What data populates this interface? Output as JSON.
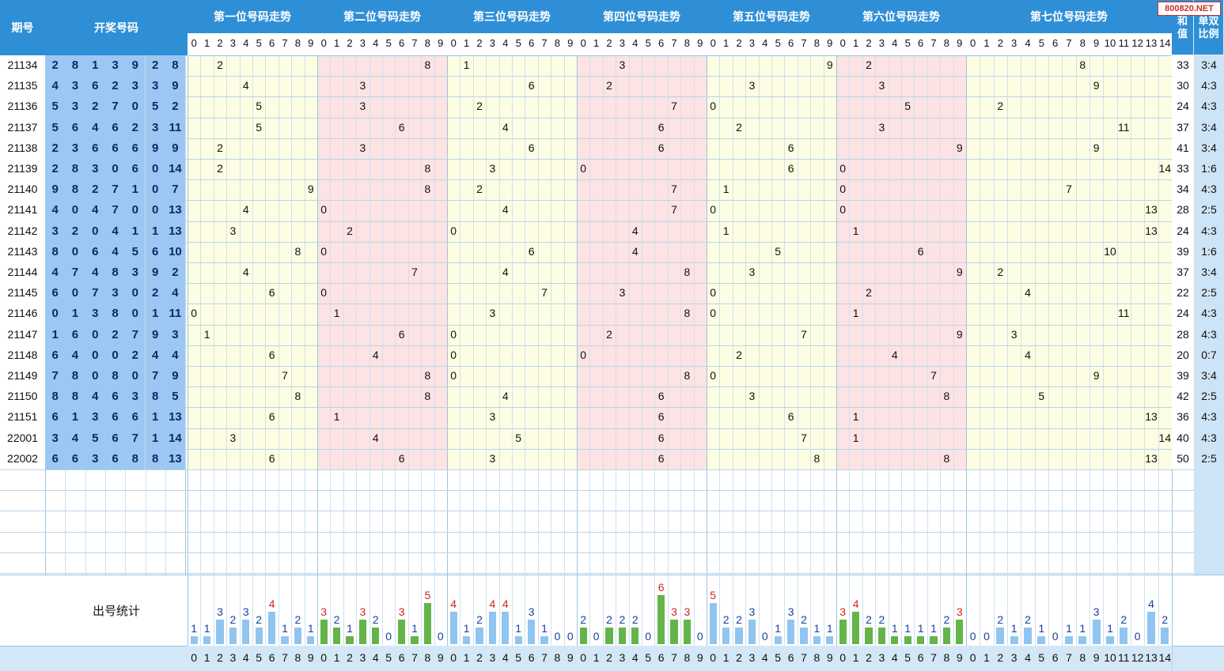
{
  "watermark": "800820.NET",
  "headers": {
    "period": "期号",
    "draw": "开奖号码",
    "positions": [
      "第一位号码走势",
      "第二位号码走势",
      "第三位号码走势",
      "第四位号码走势",
      "第五位号码走势",
      "第六位号码走势",
      "第七位号码走势"
    ],
    "sum": "和值",
    "ratio": "单双比例",
    "stats_label": "出号统计"
  },
  "digit_labels_0_9": [
    "0",
    "1",
    "2",
    "3",
    "4",
    "5",
    "6",
    "7",
    "8",
    "9"
  ],
  "digit_labels_0_14": [
    "0",
    "1",
    "2",
    "3",
    "4",
    "5",
    "6",
    "7",
    "8",
    "9",
    "10",
    "11",
    "12",
    "13",
    "14"
  ],
  "colors": {
    "header_blue": "#2f8fd6",
    "draw_blue": "#9cc7f2",
    "yellow_band": "#fdfde3",
    "pink_band": "#fde3e3",
    "bar_blue": "#8fc5f0",
    "bar_green": "#63b54a",
    "label_blue": "#1a3fa0",
    "label_red": "#d22424"
  },
  "rows": [
    {
      "period": "21134",
      "nums": [
        "2",
        "8",
        "1",
        "3",
        "9",
        "2",
        "8"
      ],
      "sum": "33",
      "ratio": "3:4"
    },
    {
      "period": "21135",
      "nums": [
        "4",
        "3",
        "6",
        "2",
        "3",
        "3",
        "9"
      ],
      "sum": "30",
      "ratio": "4:3"
    },
    {
      "period": "21136",
      "nums": [
        "5",
        "3",
        "2",
        "7",
        "0",
        "5",
        "2"
      ],
      "sum": "24",
      "ratio": "4:3"
    },
    {
      "period": "21137",
      "nums": [
        "5",
        "6",
        "4",
        "6",
        "2",
        "3",
        "11"
      ],
      "sum": "37",
      "ratio": "3:4"
    },
    {
      "period": "21138",
      "nums": [
        "2",
        "3",
        "6",
        "6",
        "6",
        "9",
        "9"
      ],
      "sum": "41",
      "ratio": "3:4"
    },
    {
      "period": "21139",
      "nums": [
        "2",
        "8",
        "3",
        "0",
        "6",
        "0",
        "14"
      ],
      "sum": "33",
      "ratio": "1:6"
    },
    {
      "period": "21140",
      "nums": [
        "9",
        "8",
        "2",
        "7",
        "1",
        "0",
        "7"
      ],
      "sum": "34",
      "ratio": "4:3"
    },
    {
      "period": "21141",
      "nums": [
        "4",
        "0",
        "4",
        "7",
        "0",
        "0",
        "13"
      ],
      "sum": "28",
      "ratio": "2:5"
    },
    {
      "period": "21142",
      "nums": [
        "3",
        "2",
        "0",
        "4",
        "1",
        "1",
        "13"
      ],
      "sum": "24",
      "ratio": "4:3"
    },
    {
      "period": "21143",
      "nums": [
        "8",
        "0",
        "6",
        "4",
        "5",
        "6",
        "10"
      ],
      "sum": "39",
      "ratio": "1:6"
    },
    {
      "period": "21144",
      "nums": [
        "4",
        "7",
        "4",
        "8",
        "3",
        "9",
        "2"
      ],
      "sum": "37",
      "ratio": "3:4"
    },
    {
      "period": "21145",
      "nums": [
        "6",
        "0",
        "7",
        "3",
        "0",
        "2",
        "4"
      ],
      "sum": "22",
      "ratio": "2:5"
    },
    {
      "period": "21146",
      "nums": [
        "0",
        "1",
        "3",
        "8",
        "0",
        "1",
        "11"
      ],
      "sum": "24",
      "ratio": "4:3"
    },
    {
      "period": "21147",
      "nums": [
        "1",
        "6",
        "0",
        "2",
        "7",
        "9",
        "3"
      ],
      "sum": "28",
      "ratio": "4:3"
    },
    {
      "period": "21148",
      "nums": [
        "6",
        "4",
        "0",
        "0",
        "2",
        "4",
        "4"
      ],
      "sum": "20",
      "ratio": "0:7"
    },
    {
      "period": "21149",
      "nums": [
        "7",
        "8",
        "0",
        "8",
        "0",
        "7",
        "9"
      ],
      "sum": "39",
      "ratio": "3:4"
    },
    {
      "period": "21150",
      "nums": [
        "8",
        "8",
        "4",
        "6",
        "3",
        "8",
        "5"
      ],
      "sum": "42",
      "ratio": "2:5"
    },
    {
      "period": "21151",
      "nums": [
        "6",
        "1",
        "3",
        "6",
        "6",
        "1",
        "13"
      ],
      "sum": "36",
      "ratio": "4:3"
    },
    {
      "period": "22001",
      "nums": [
        "3",
        "4",
        "5",
        "6",
        "7",
        "1",
        "14"
      ],
      "sum": "40",
      "ratio": "4:3"
    },
    {
      "period": "22002",
      "nums": [
        "6",
        "6",
        "3",
        "6",
        "8",
        "8",
        "13"
      ],
      "sum": "50",
      "ratio": "2:5"
    }
  ],
  "stats": [
    [
      1,
      1,
      3,
      2,
      3,
      2,
      4,
      1,
      2,
      1
    ],
    [
      3,
      2,
      1,
      3,
      2,
      0,
      3,
      1,
      5,
      0
    ],
    [
      4,
      1,
      2,
      4,
      4,
      1,
      3,
      1,
      0,
      0
    ],
    [
      2,
      0,
      2,
      2,
      2,
      0,
      6,
      3,
      3,
      0
    ],
    [
      5,
      2,
      2,
      3,
      0,
      1,
      3,
      2,
      1,
      1
    ],
    [
      3,
      4,
      2,
      2,
      1,
      1,
      1,
      1,
      2,
      3
    ],
    [
      0,
      0,
      2,
      1,
      2,
      1,
      0,
      1,
      1,
      3,
      1,
      2,
      0,
      4,
      2
    ]
  ]
}
